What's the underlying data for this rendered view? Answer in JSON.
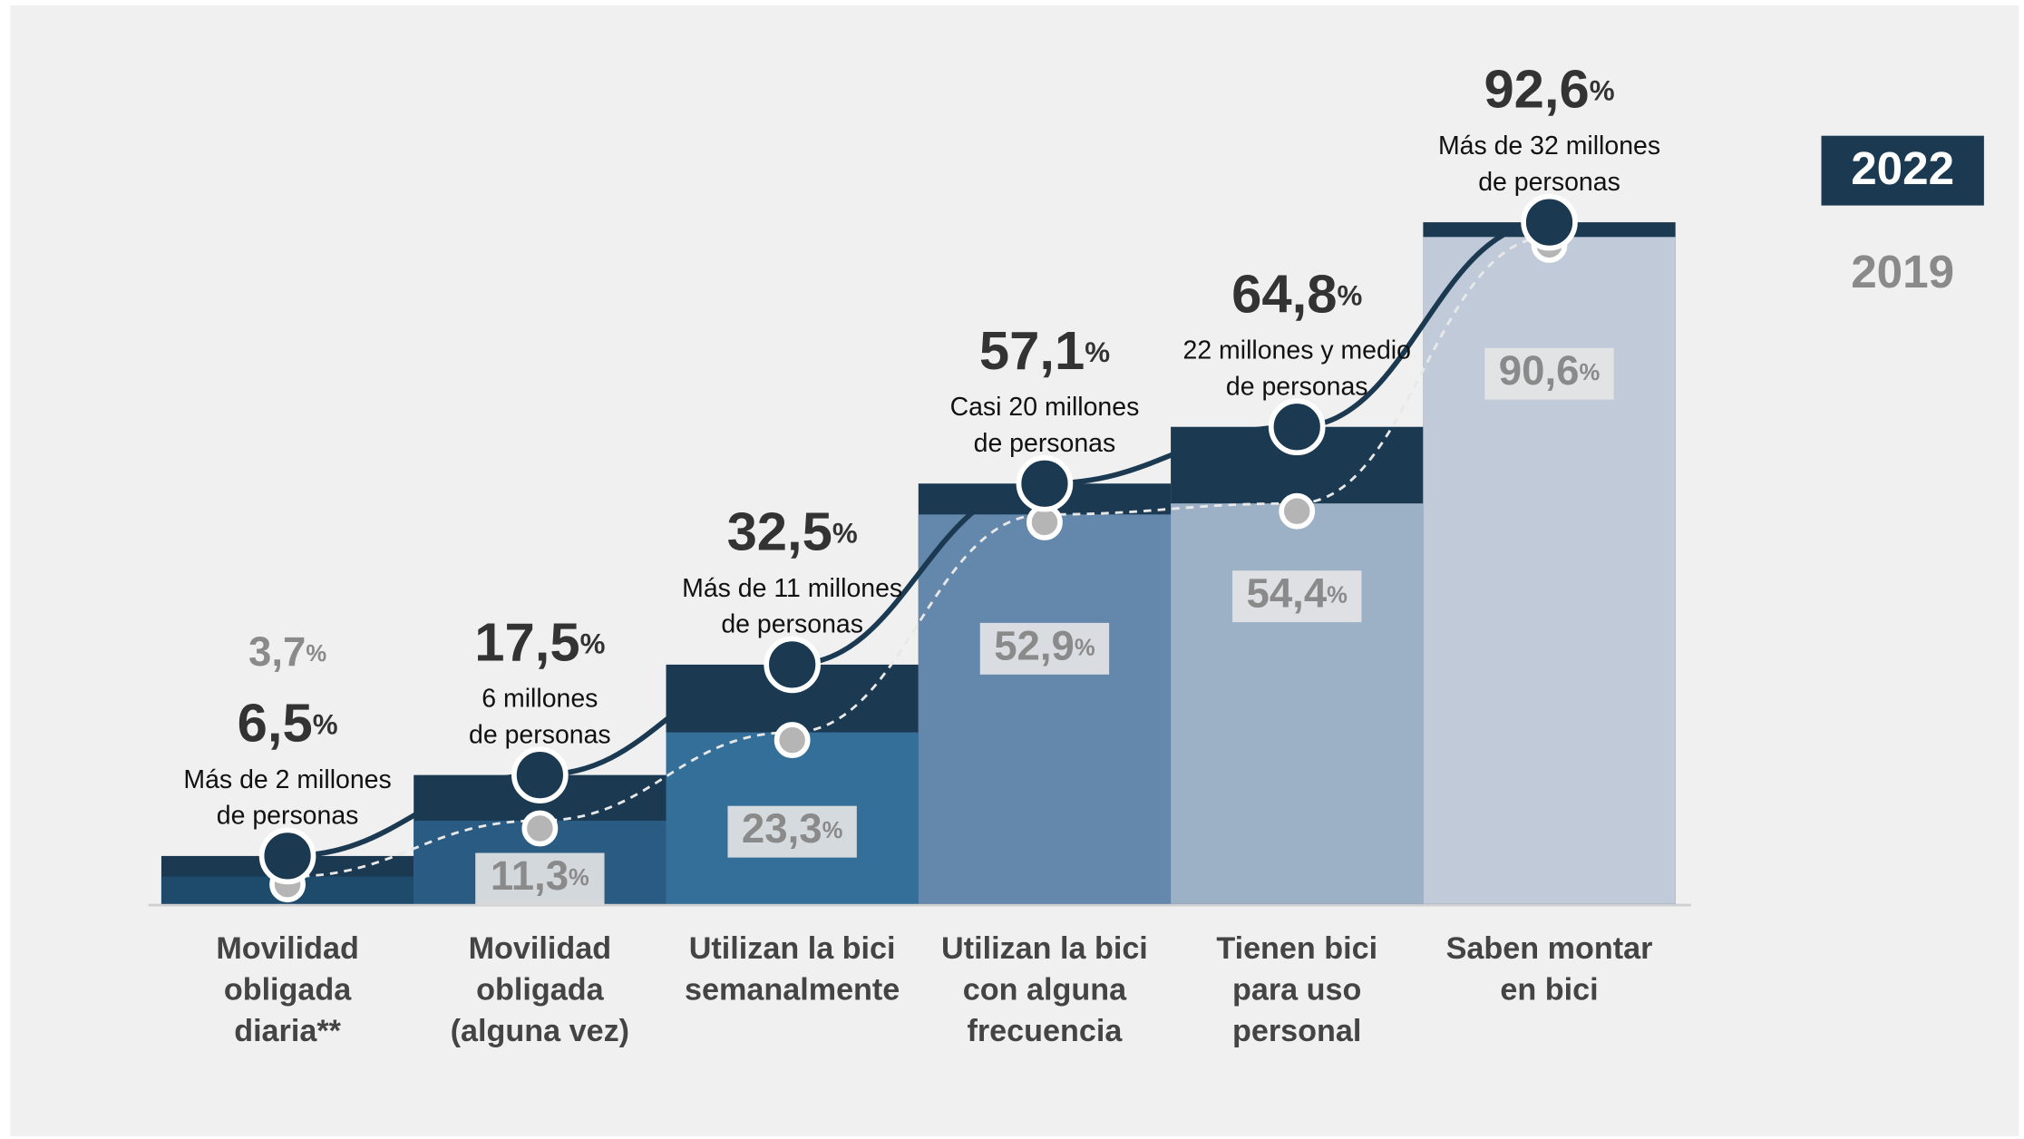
{
  "chart_data": {
    "type": "bar",
    "categories": [
      [
        "Movilidad",
        "obligada",
        "diaria**"
      ],
      [
        "Movilidad",
        "obligada",
        "(alguna vez)"
      ],
      [
        "Utilizan la bici",
        "semanalmente"
      ],
      [
        "Utilizan la bici",
        "con alguna",
        "frecuencia"
      ],
      [
        "Tienen bici",
        "para uso",
        "personal"
      ],
      [
        "Saben montar",
        "en bici"
      ]
    ],
    "series": [
      {
        "name": "2022",
        "color": "#1b3a52",
        "values": [
          6.5,
          17.5,
          32.5,
          57.1,
          64.8,
          92.6
        ],
        "value_labels": [
          "6,5%",
          "17,5%",
          "32,5%",
          "57,1%",
          "64,8%",
          "92,6%"
        ]
      },
      {
        "name": "2019",
        "color": "#b5b5b5",
        "values": [
          3.7,
          11.3,
          23.3,
          52.9,
          54.4,
          90.6
        ],
        "value_labels": [
          "3,7%",
          "11,3%",
          "23,3%",
          "52,9%",
          "54,4%",
          "90,6%"
        ]
      }
    ],
    "bar_colors": [
      "#1e4a6b",
      "#2a5b83",
      "#346f9a",
      "#6488ac",
      "#9cb1c6",
      "#c0cad9"
    ],
    "annotations": [
      [
        "Más de 2 millones",
        "de personas"
      ],
      [
        "6 millones",
        "de personas"
      ],
      [
        "Más de 11 millones",
        "de personas"
      ],
      [
        "Casi 20 millones",
        "de personas"
      ],
      [
        "22 millones y medio",
        "de personas"
      ],
      [
        "Más de 32 millones",
        "de personas"
      ]
    ],
    "ylim": [
      0,
      100
    ]
  }
}
